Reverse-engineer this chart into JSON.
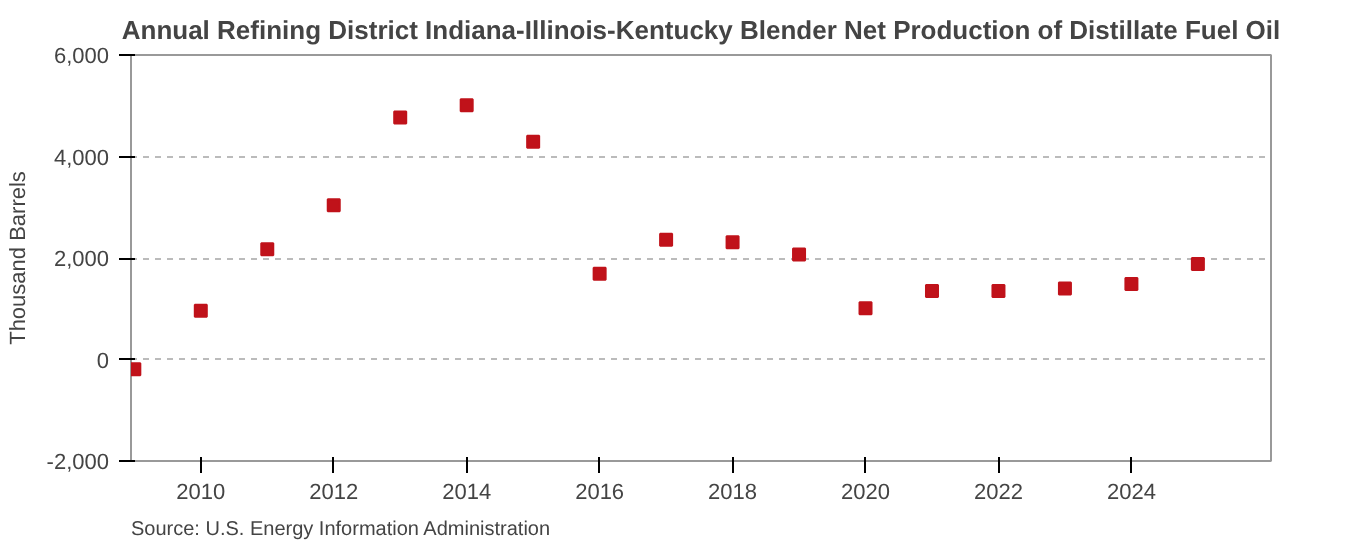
{
  "chart_data": {
    "type": "scatter",
    "title": "Annual Refining District Indiana-Illinois-Kentucky Blender Net Production of Distillate Fuel Oil",
    "ylabel": "Thousand Barrels",
    "annotations": [
      "Source: U.S. Energy Information Administration"
    ],
    "x": [
      2009,
      2010,
      2011,
      2012,
      2013,
      2014,
      2015,
      2016,
      2017,
      2018,
      2019,
      2020,
      2021,
      2022,
      2023,
      2024,
      2025
    ],
    "series": [
      {
        "color": "#c0121a",
        "values": [
          -190,
          960,
          2170,
          3040,
          4770,
          5010,
          4290,
          1690,
          2360,
          2310,
          2070,
          1010,
          1350,
          1350,
          1400,
          1490,
          1880
        ]
      }
    ],
    "xlim": [
      2008.95,
      2026.1
    ],
    "xticks": [
      2010,
      2012,
      2014,
      2016,
      2018,
      2020,
      2022,
      2024
    ],
    "ylim": [
      -2000,
      6000
    ],
    "yticks": [
      {
        "value": -2000,
        "label": "-2,000"
      },
      0,
      {
        "value": 2000,
        "label": "2,000"
      },
      {
        "value": 4000,
        "label": "4,000"
      },
      {
        "value": 6000,
        "label": "6,000"
      }
    ],
    "grid": "y",
    "marker": "square"
  }
}
